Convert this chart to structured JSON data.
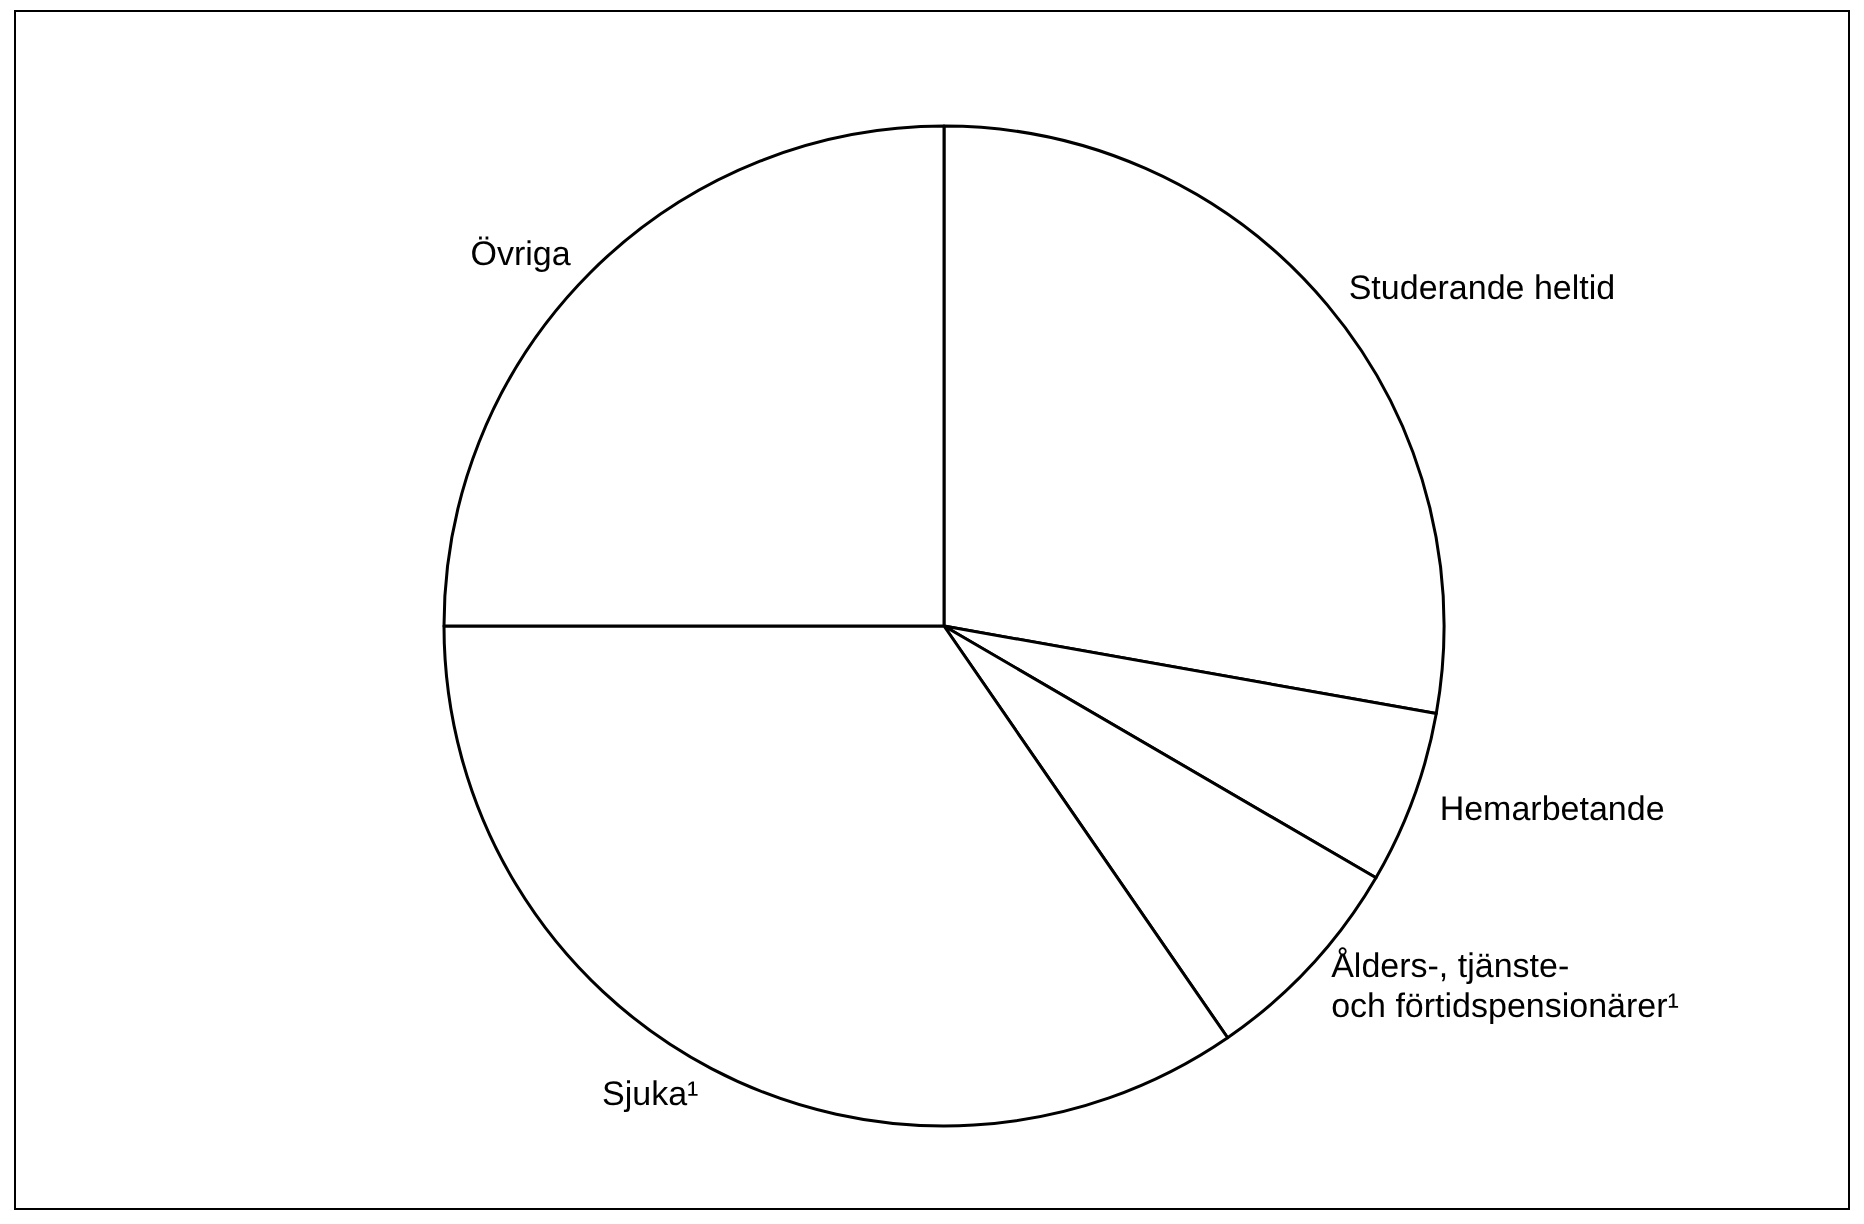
{
  "chart_data": {
    "type": "pie",
    "categories": [
      "Studerande heltid",
      "Hemarbetande",
      "Ålders-, tjänste-\noch förtidspensionärer¹",
      "Sjuka¹",
      "Övriga"
    ],
    "values": [
      27.8,
      5.6,
      7.0,
      34.6,
      25.0
    ],
    "colors": [
      "#ffffff",
      "#ffffff",
      "#ffffff",
      "#ffffff",
      "#ffffff"
    ]
  }
}
